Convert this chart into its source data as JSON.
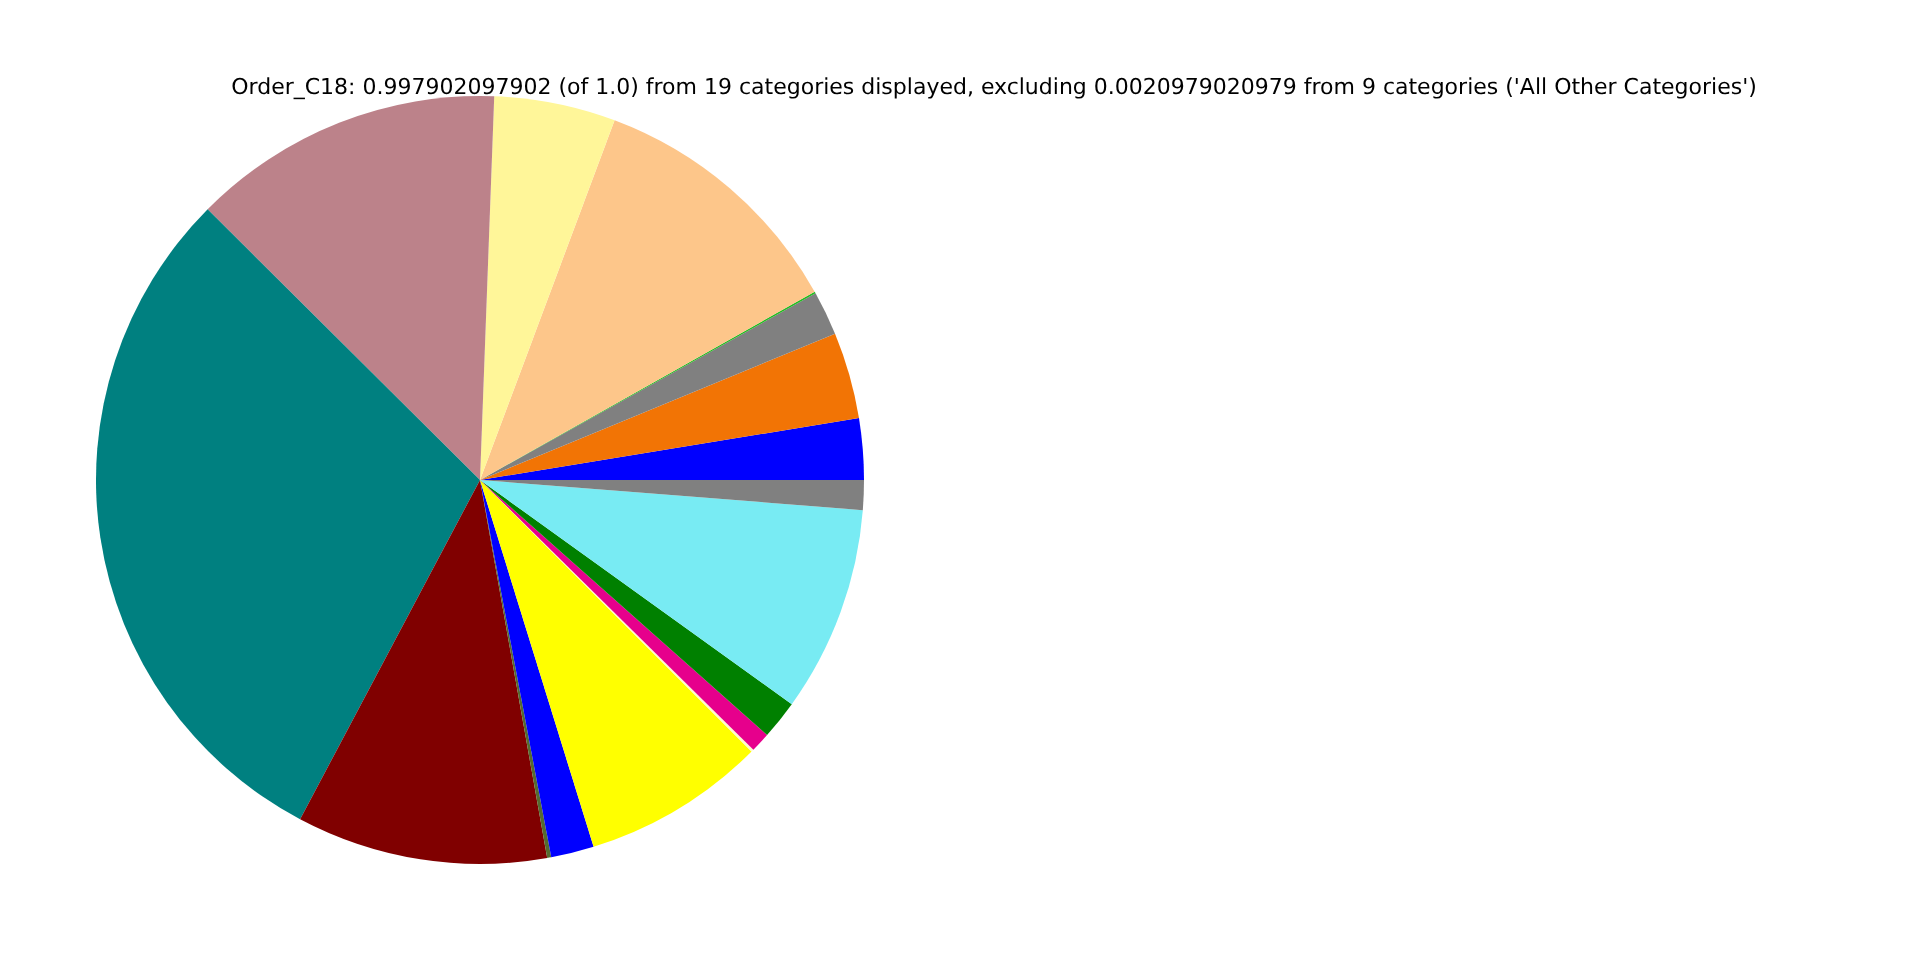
{
  "chart_data": {
    "type": "pie",
    "title": "Order_C18: 0.997902097902 (of 1.0) from 19 categories displayed, excluding 0.0020979020979 from 9 categories ('All Other Categories')",
    "categories": [
      null,
      null,
      null,
      null,
      null,
      null,
      null,
      null,
      null,
      null,
      null,
      null,
      null,
      null,
      null,
      null,
      null
    ],
    "values": [
      2.58,
      3.64,
      1.86,
      0.08,
      11.14,
      5.11,
      13.14,
      29.69,
      10.56,
      0.17,
      1.81,
      7.72,
      0.11,
      0.83,
      1.64,
      8.67,
      1.25
    ],
    "colors": [
      "#0000ff",
      "#f27405",
      "#808080",
      "#22bb22",
      "#fdc68a",
      "#fff699",
      "#bc828a",
      "#008080",
      "#800000",
      "#556b2f",
      "#0000ff",
      "#ffff00",
      "#fffacd",
      "#e6008c",
      "#008000",
      "#78ebf3",
      "#808080"
    ]
  }
}
